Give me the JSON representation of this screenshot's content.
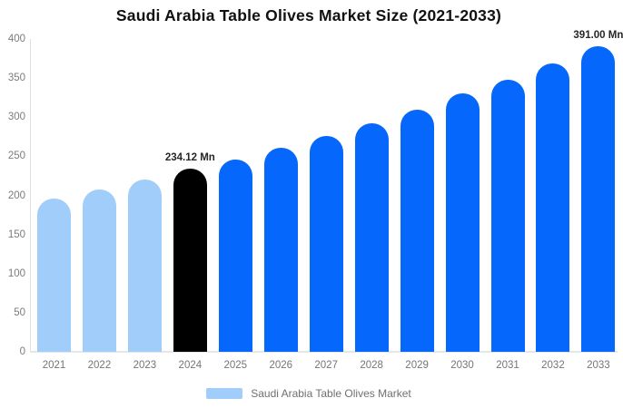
{
  "chart_data": {
    "type": "bar",
    "title": "Saudi Arabia Table Olives Market Size (2021-2033)",
    "categories": [
      "2021",
      "2022",
      "2023",
      "2024",
      "2025",
      "2026",
      "2027",
      "2028",
      "2029",
      "2030",
      "2031",
      "2032",
      "2033"
    ],
    "values": [
      196,
      207,
      220,
      234.12,
      246,
      261,
      276,
      292,
      310,
      330,
      348,
      369,
      391
    ],
    "value_labels": {
      "2024": "234.12 Mn",
      "2033": "391.00 Mn"
    },
    "ylim": [
      0,
      400
    ],
    "yticks": [
      0,
      50,
      100,
      150,
      200,
      250,
      300,
      350,
      400
    ],
    "grid": false,
    "legend_position": "bottom",
    "colors": {
      "historical": "#a0cdfa",
      "base_year": "#000000",
      "forecast": "#0567fb"
    },
    "bar_color_keys": [
      "historical",
      "historical",
      "historical",
      "base_year",
      "forecast",
      "forecast",
      "forecast",
      "forecast",
      "forecast",
      "forecast",
      "forecast",
      "forecast",
      "forecast"
    ]
  },
  "legend": {
    "label": "Saudi Arabia Table Olives Market"
  }
}
